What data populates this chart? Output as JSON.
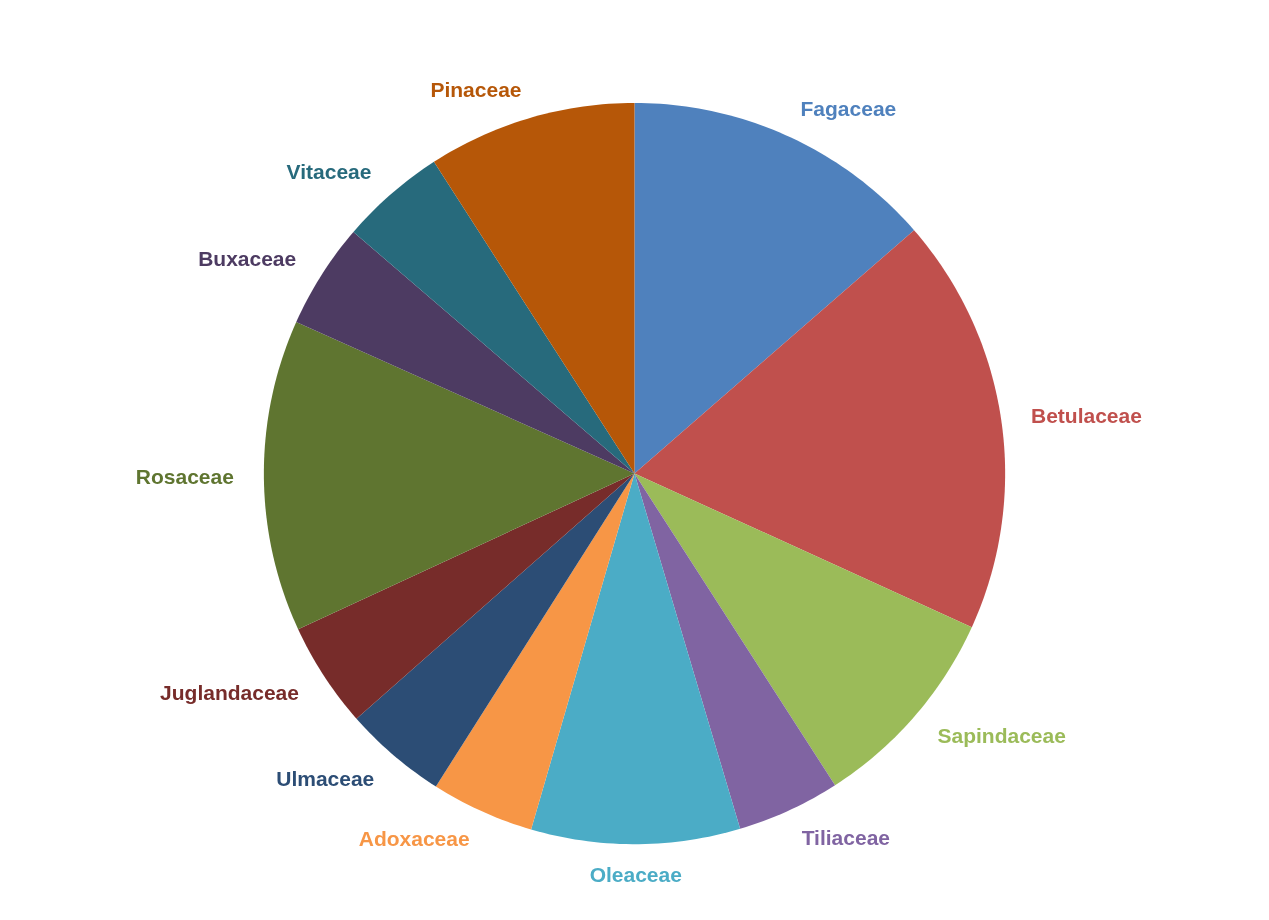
{
  "chart_data": {
    "type": "pie",
    "categories": [
      "Fagaceae",
      "Betulaceae",
      "Sapindaceae",
      "Tiliaceae",
      "Oleaceae",
      "Adoxaceae",
      "Ulmaceae",
      "Juglandaceae",
      "Rosaceae",
      "Buxaceae",
      "Vitaceae",
      "Pinaceae"
    ],
    "values": [
      13.6,
      18.2,
      9.1,
      4.5,
      9.1,
      4.5,
      4.5,
      4.6,
      13.6,
      4.6,
      4.6,
      9.1
    ],
    "colors": [
      "#4f81bd",
      "#c0504d",
      "#9bbb59",
      "#8064a2",
      "#4bacc6",
      "#f79646",
      "#2c4d75",
      "#772c2a",
      "#5f7530",
      "#4d3b62",
      "#276a7c",
      "#b65708"
    ]
  }
}
